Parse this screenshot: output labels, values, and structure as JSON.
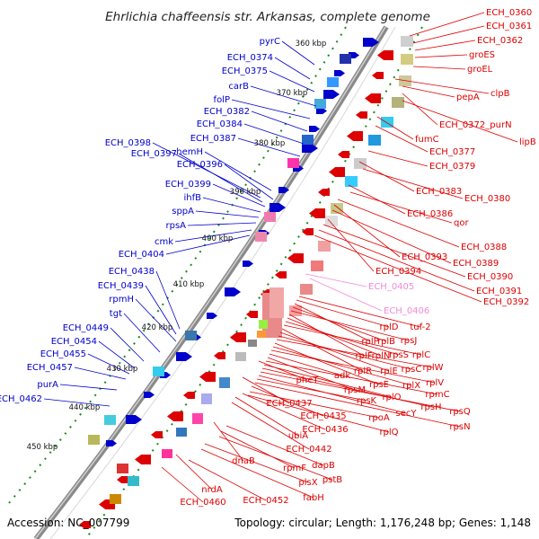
{
  "title": "Ehrlichia chaffeensis str. Arkansas, complete genome",
  "accession": "Accession: NC_007799",
  "summary": "Topology: circular; Length: 1,176,248 bp; Genes: 1,148",
  "colors": {
    "forward": "#0000cc",
    "reverse": "#dd0000",
    "pseudo": "#f08ad8",
    "backbone": "#888888",
    "tick": "#1a8a1a"
  },
  "kbp_ticks": [
    "360 kbp",
    "370 kbp",
    "380 kbp",
    "390 kbp",
    "400 kbp",
    "410 kbp",
    "420 kbp",
    "430 kbp",
    "440 kbp",
    "450 kbp"
  ],
  "forward_labels": [
    "pyrC",
    "ECH_0374",
    "ECH_0375",
    "carB",
    "folP",
    "ECH_0382",
    "ECH_0384",
    "ECH_0387",
    "ECH_0398",
    "ECH_0397",
    "hemH",
    "ECH_0396",
    "ECH_0399",
    "ihfB",
    "sppA",
    "rpsA",
    "cmk",
    "ECH_0404",
    "ECH_0438",
    "ECH_0439",
    "rpmH",
    "tgt",
    "ECH_0449",
    "ECH_0454",
    "ECH_0455",
    "ECH_0457",
    "purA",
    "ECH_0462"
  ],
  "reverse_labels": [
    "ECH_0360",
    "ECH_0361",
    "ECH_0362",
    "groES",
    "groEL",
    "clpB",
    "pepA",
    "ECH_0372_purN",
    "lipB",
    "fumC",
    "ECH_0377",
    "ECH_0379",
    "ECH_0383",
    "ECH_0380",
    "ECH_0386",
    "qor",
    "ECH_0388",
    "ECH_0393",
    "ECH_0389",
    "ECH_0394",
    "ECH_0390",
    "ECH_0391",
    "ECH_0392"
  ],
  "pseudo_labels": [
    "ECH_0405",
    "ECH_0406"
  ],
  "inner_labels": [
    "tuf-2",
    "rplD",
    "rplP",
    "rplB",
    "rpsJ",
    "rplF",
    "rplN",
    "rpsS",
    "rplC",
    "rplR",
    "rplE",
    "rpsC",
    "rplW",
    "rpsE",
    "rplX",
    "rplV",
    "adk",
    "rpsM",
    "rpmC",
    "pheT",
    "rplO",
    "rpsH",
    "rpsQ",
    "secY",
    "rpsK",
    "rpsN",
    "ECH_0437",
    "ECH_0435",
    "rpoA",
    "rplQ",
    "ECH_0436",
    "ubiA",
    "ECH_0442",
    "dnaB",
    "dapB",
    "rpmF",
    "pstB",
    "plsX",
    "fabH",
    "nrdA",
    "ECH_0452",
    "ECH_0460"
  ]
}
